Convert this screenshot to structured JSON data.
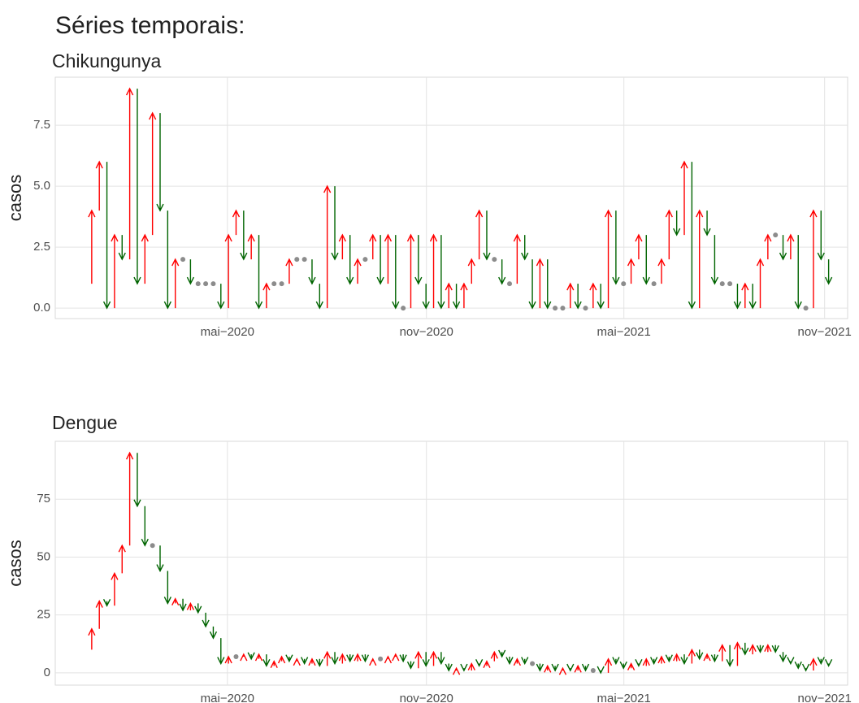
{
  "title": "Séries temporais:",
  "chart_data": [
    {
      "type": "arrow",
      "title": "Chikungunya",
      "y_label": "casos",
      "up_color": "#ff0000",
      "down_color": "#006400",
      "same_color": "#8c8c8c",
      "x": [
        0,
        1,
        2,
        3,
        4,
        5,
        6,
        7,
        8,
        9,
        10,
        11,
        12,
        13,
        14,
        15,
        16,
        17,
        18,
        19,
        20,
        21,
        22,
        23,
        24,
        25,
        26,
        27,
        28,
        29,
        30,
        31,
        32,
        33,
        34,
        35,
        36,
        37,
        38,
        39,
        40,
        41,
        42,
        43,
        44,
        45,
        46,
        47,
        48,
        49,
        50,
        51,
        52,
        53,
        54,
        55,
        56,
        57,
        58,
        59,
        60,
        61,
        62,
        63,
        64,
        65,
        66,
        67,
        68,
        69,
        70,
        71,
        72,
        73,
        74,
        75,
        76,
        77,
        78,
        79,
        80,
        81,
        82,
        83,
        84,
        85,
        86,
        87,
        88,
        89,
        90,
        91,
        92,
        93,
        94,
        95,
        96,
        97,
        98
      ],
      "values": [
        1,
        4,
        6,
        0,
        3,
        2,
        9,
        1,
        3,
        8,
        4,
        0,
        2,
        2,
        1,
        1,
        1,
        1,
        0,
        3,
        4,
        2,
        3,
        0,
        1,
        1,
        1,
        2,
        2,
        2,
        1,
        0,
        5,
        2,
        3,
        1,
        2,
        2,
        3,
        1,
        3,
        0,
        0,
        3,
        1,
        0,
        3,
        0,
        1,
        0,
        1,
        2,
        4,
        2,
        2,
        1,
        1,
        3,
        2,
        0,
        2,
        0,
        0,
        0,
        1,
        0,
        0,
        1,
        0,
        4,
        1,
        1,
        2,
        3,
        1,
        1,
        2,
        4,
        3,
        6,
        0,
        4,
        3,
        1,
        1,
        1,
        0,
        1,
        0,
        2,
        3,
        3,
        2,
        3,
        0,
        0,
        4,
        2,
        1
      ],
      "xlim": [
        -3.8,
        100.5
      ],
      "xticks": [
        {
          "value": 18.86,
          "label": "mai−2020"
        },
        {
          "value": 45.06,
          "label": "nov−2020"
        },
        {
          "value": 71.05,
          "label": "mai−2021"
        },
        {
          "value": 97.47,
          "label": "nov−2021"
        }
      ],
      "ylim": [
        -0.43,
        9.47
      ],
      "yticks": [
        {
          "value": 0,
          "label": "0.0"
        },
        2.5,
        {
          "value": 5,
          "label": "5.0"
        },
        7.5
      ],
      "grid": true
    },
    {
      "type": "arrow",
      "title": "Dengue",
      "y_label": "casos",
      "up_color": "#ff0000",
      "down_color": "#006400",
      "same_color": "#8c8c8c",
      "x": [
        0,
        1,
        2,
        3,
        4,
        5,
        6,
        7,
        8,
        9,
        10,
        11,
        12,
        13,
        14,
        15,
        16,
        17,
        18,
        19,
        20,
        21,
        22,
        23,
        24,
        25,
        26,
        27,
        28,
        29,
        30,
        31,
        32,
        33,
        34,
        35,
        36,
        37,
        38,
        39,
        40,
        41,
        42,
        43,
        44,
        45,
        46,
        47,
        48,
        49,
        50,
        51,
        52,
        53,
        54,
        55,
        56,
        57,
        58,
        59,
        60,
        61,
        62,
        63,
        64,
        65,
        66,
        67,
        68,
        69,
        70,
        71,
        72,
        73,
        74,
        75,
        76,
        77,
        78,
        79,
        80,
        81,
        82,
        83,
        84,
        85,
        86,
        87,
        88,
        89,
        90,
        91,
        92,
        93,
        94,
        95,
        96,
        97,
        98
      ],
      "values": [
        10,
        19,
        31,
        29,
        43,
        55,
        95,
        72,
        55,
        55,
        44,
        30,
        32,
        27,
        30,
        26,
        20,
        15,
        4,
        7,
        7,
        8,
        6,
        8,
        3,
        5,
        7,
        5,
        6,
        4,
        6,
        3,
        9,
        4,
        8,
        5,
        8,
        5,
        6,
        6,
        7,
        8,
        5,
        2,
        9,
        3,
        9,
        4,
        1,
        2,
        1,
        4,
        3,
        5,
        9,
        7,
        4,
        6,
        4,
        4,
        1,
        3,
        1,
        2,
        1,
        3,
        1,
        1,
        0,
        6,
        4,
        2,
        4,
        3,
        6,
        4,
        7,
        5,
        8,
        4,
        10,
        6,
        8,
        5,
        12,
        3,
        13,
        8,
        12,
        9,
        12,
        9,
        5,
        4,
        2,
        1,
        6,
        4,
        3
      ],
      "xlim": [
        -3.8,
        100.5
      ],
      "xticks": [
        {
          "value": 18.86,
          "label": "mai−2020"
        },
        {
          "value": 45.06,
          "label": "nov−2020"
        },
        {
          "value": 71.05,
          "label": "mai−2021"
        },
        {
          "value": 97.47,
          "label": "nov−2021"
        }
      ],
      "ylim": [
        -5.3,
        100
      ],
      "yticks": [
        0,
        25,
        50,
        75
      ],
      "grid": true
    }
  ]
}
